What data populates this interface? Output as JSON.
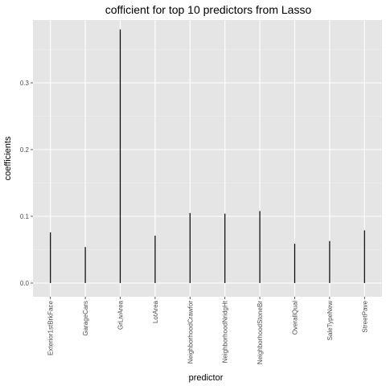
{
  "chart_data": {
    "type": "bar",
    "title": "cofficient for top 10 predictors from Lasso",
    "xlabel": "predictor",
    "ylabel": "coefficients",
    "categories": [
      "Exterior1stBrkFace",
      "GarageCars",
      "GrLivArea",
      "LotArea",
      "NeighborhoodCrawfor",
      "NeighborhoodNridgHt",
      "NeighborhoodStoneBr",
      "OverallQual",
      "SaleTypeNew",
      "StreetPave"
    ],
    "values": [
      0.076,
      0.054,
      0.38,
      0.071,
      0.105,
      0.104,
      0.108,
      0.059,
      0.063,
      0.079
    ],
    "ylim": [
      -0.02,
      0.4
    ],
    "yticks": [
      0.0,
      0.1,
      0.2,
      0.3
    ],
    "ytick_labels": [
      "0.0",
      "0.1",
      "0.2",
      "0.3"
    ],
    "grid": true,
    "colors": {
      "panel": "#e5e5e5",
      "grid_major": "#ffffff",
      "bar": "#000000"
    }
  }
}
